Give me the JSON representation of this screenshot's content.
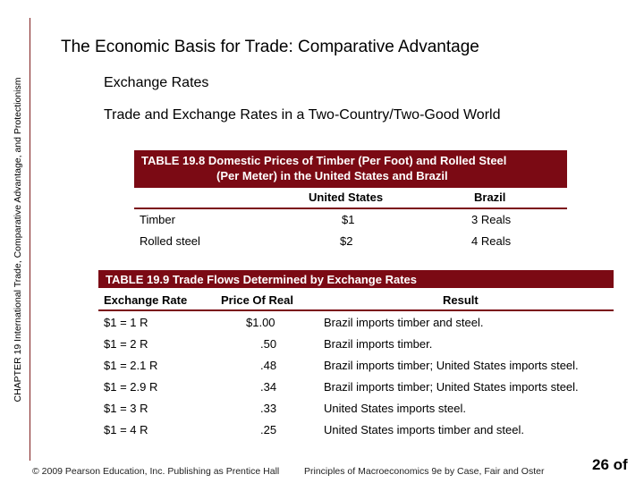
{
  "side_label": "CHAPTER 19 International Trade, Comparative Advantage, and Protectionism",
  "title": "The Economic Basis for Trade:  Comparative Advantage",
  "subtitle1": "Exchange Rates",
  "subtitle2": "Trade and Exchange Rates in a Two-Country/Two-Good World",
  "table1": {
    "caption_line1": "TABLE 19.8  Domestic Prices of Timber (Per Foot) and Rolled Steel",
    "caption_line2": "(Per Meter) in the United States and Brazil",
    "columns": [
      "United States",
      "Brazil"
    ],
    "rows": [
      {
        "label": "Timber",
        "us": "$1",
        "brazil": "3 Reals"
      },
      {
        "label": "Rolled steel",
        "us": "$2",
        "brazil": "4 Reals"
      }
    ]
  },
  "table2": {
    "caption": "TABLE 19.9  Trade Flows Determined by Exchange Rates",
    "columns": [
      "Exchange Rate",
      "Price Of Real",
      "Result"
    ],
    "rows": [
      {
        "rate": "$1 = 1 R",
        "price": "$1.00",
        "result": "Brazil imports timber and steel."
      },
      {
        "rate": "$1 = 2 R",
        "price": ".50",
        "result": "Brazil imports timber."
      },
      {
        "rate": "$1 = 2.1 R",
        "price": ".48",
        "result": "Brazil imports timber; United States imports steel."
      },
      {
        "rate": "$1 = 2.9 R",
        "price": ".34",
        "result": "Brazil imports timber; United States imports steel."
      },
      {
        "rate": "$1 = 3 R",
        "price": ".33",
        "result": "United States imports steel."
      },
      {
        "rate": "$1 = 4 R",
        "price": ".25",
        "result": "United States imports timber and steel."
      }
    ]
  },
  "footer": {
    "copyright": "© 2009 Pearson Education, Inc. Publishing as Prentice Hall",
    "book": "Principles of Macroeconomics 9e by Case, Fair and Oster",
    "page": "26 of"
  },
  "colors": {
    "accent": "#7b0a14"
  }
}
